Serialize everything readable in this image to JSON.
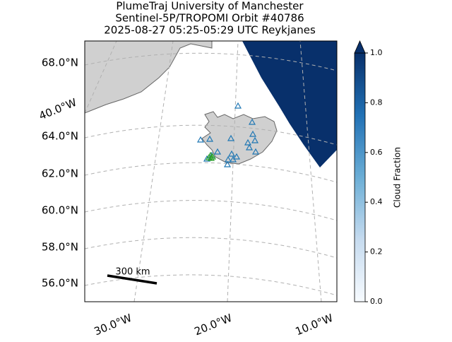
{
  "title": [
    "PlumeTraj    University of Manchester",
    "Sentinel-5P/TROPOMI Orbit #40786",
    "2025-08-27   05:25-05:29 UTC   Reykjanes"
  ],
  "lat_labels": [
    "68.0°N",
    "64.0°N",
    "62.0°N",
    "60.0°N",
    "58.0°N",
    "56.0°N"
  ],
  "lon_labels": [
    "40.0°W",
    "30.0°W",
    "20.0°W",
    "10.0°W"
  ],
  "scale_bar": "300 km",
  "colorbar": {
    "label": "Cloud Fraction",
    "lim": [
      0,
      1
    ],
    "ticks": [
      {
        "value": 0,
        "label": "0.0"
      },
      0.2,
      0.4,
      0.6,
      0.8,
      {
        "value": 1,
        "label": "1.0"
      }
    ],
    "colors": [
      "#f7fbff",
      "#c6dbef",
      "#6baed6",
      "#2171b5",
      "#08306b"
    ]
  }
}
